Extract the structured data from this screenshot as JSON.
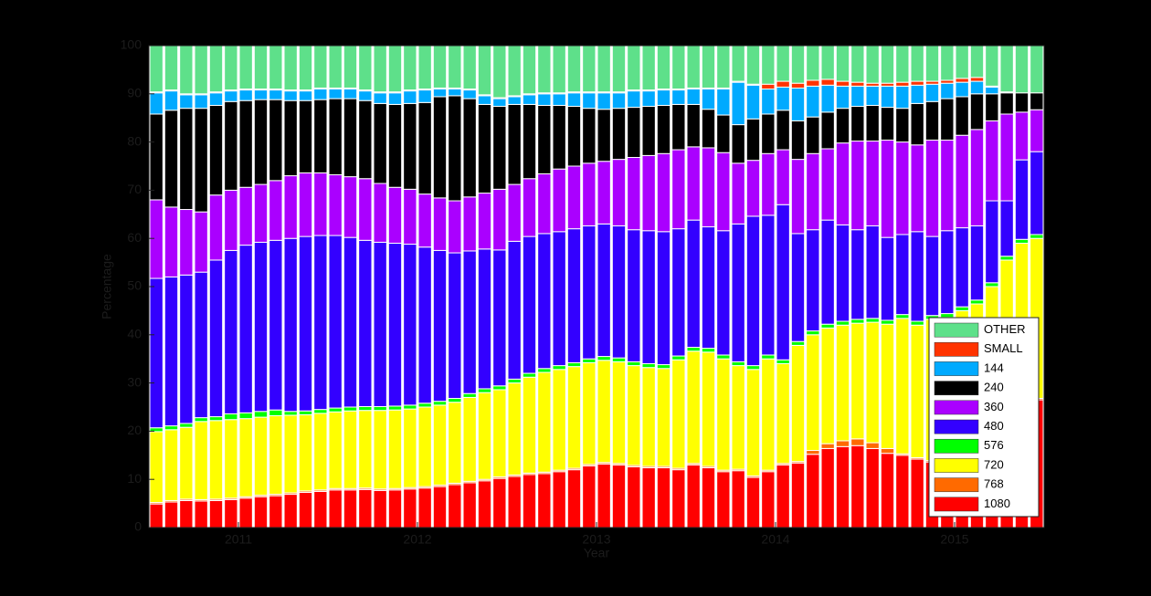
{
  "chart_data": {
    "type": "stacked-bar",
    "x_label": "Year",
    "y_label": "Percentage",
    "categories": [
      null,
      null,
      null,
      null,
      null,
      null,
      "2011",
      null,
      null,
      null,
      null,
      null,
      null,
      null,
      null,
      null,
      null,
      null,
      "2012",
      null,
      null,
      null,
      null,
      null,
      null,
      null,
      null,
      null,
      null,
      null,
      "2013",
      null,
      null,
      null,
      null,
      null,
      null,
      null,
      null,
      null,
      null,
      null,
      "2014",
      null,
      null,
      null,
      null,
      null,
      null,
      null,
      null,
      null,
      null,
      null,
      "2015",
      null,
      null,
      null,
      null,
      null
    ],
    "ylim": [
      0,
      100
    ],
    "yticks": [
      0,
      10,
      20,
      30,
      40,
      50,
      60,
      70,
      80,
      90,
      100
    ],
    "legend": "lower right",
    "series": [
      {
        "name": "1080",
        "color": "#ff0000",
        "values": [
          4.9,
          5.3,
          5.6,
          5.5,
          5.6,
          5.8,
          6.1,
          6.4,
          6.6,
          6.9,
          7.3,
          7.5,
          7.8,
          7.8,
          7.9,
          7.7,
          7.8,
          8.0,
          8.2,
          8.5,
          8.9,
          9.3,
          9.7,
          10.2,
          10.6,
          11.0,
          11.2,
          11.6,
          12.0,
          12.8,
          13.2,
          13.0,
          12.6,
          12.4,
          12.4,
          12.0,
          13.0,
          12.4,
          11.6,
          11.8,
          10.4,
          11.6,
          13.0,
          13.4,
          15.2,
          16.4,
          16.8,
          17.0,
          16.4,
          15.4,
          15.0,
          14.2,
          13.6,
          15.0,
          17.0,
          19.0,
          21.0,
          23.0,
          25.0,
          26.5
        ]
      },
      {
        "name": "768",
        "color": "#ff6a00",
        "values": [
          0.3,
          0.3,
          0.3,
          0.3,
          0.3,
          0.3,
          0.3,
          0.3,
          0.3,
          0.3,
          0.3,
          0.3,
          0.3,
          0.3,
          0.3,
          0.3,
          0.3,
          0.3,
          0.3,
          0.3,
          0.3,
          0.3,
          0.3,
          0.3,
          0.3,
          0.3,
          0.3,
          0.3,
          0.3,
          0.3,
          0.3,
          0.3,
          0.3,
          0.3,
          0.3,
          0.3,
          0.3,
          0.3,
          0.3,
          0.3,
          0.3,
          0.3,
          0.3,
          0.3,
          0.8,
          1.0,
          1.2,
          1.4,
          1.2,
          1.0,
          0.3,
          0.3,
          0.3,
          0.3,
          0.3,
          0.3,
          0.3,
          0.3,
          0.3,
          0.3
        ]
      },
      {
        "name": "720",
        "color": "#ffff00",
        "values": [
          14.7,
          14.7,
          14.9,
          16.2,
          16.3,
          16.3,
          16.2,
          16.2,
          16.3,
          16.1,
          15.8,
          15.9,
          15.9,
          16.1,
          16.1,
          16.3,
          16.3,
          16.3,
          16.5,
          16.6,
          16.8,
          17.4,
          18.0,
          18.1,
          19.1,
          19.9,
          20.7,
          20.9,
          21.1,
          21.1,
          21.2,
          21.1,
          20.7,
          20.5,
          20.3,
          22.5,
          23.3,
          23.7,
          23.1,
          21.5,
          22.1,
          23.1,
          20.7,
          24.1,
          24.0,
          24.0,
          24.0,
          24.0,
          25.0,
          25.8,
          28.1,
          27.5,
          29.3,
          28.3,
          27.7,
          27.1,
          28.7,
          32.2,
          33.7,
          33.2
        ]
      },
      {
        "name": "576",
        "color": "#00ff00",
        "values": [
          0.8,
          0.8,
          0.8,
          0.8,
          0.8,
          1.2,
          1.2,
          1.2,
          1.2,
          0.8,
          0.8,
          0.8,
          0.8,
          0.8,
          0.8,
          0.8,
          0.8,
          0.8,
          0.8,
          0.8,
          0.8,
          0.8,
          0.8,
          0.8,
          0.8,
          0.8,
          0.8,
          0.8,
          0.8,
          0.8,
          0.8,
          0.8,
          0.8,
          0.8,
          0.8,
          0.8,
          0.8,
          0.8,
          0.8,
          0.8,
          0.8,
          0.8,
          0.8,
          0.8,
          0.8,
          0.8,
          0.8,
          0.8,
          0.8,
          0.8,
          0.8,
          0.8,
          0.8,
          0.8,
          0.8,
          0.8,
          0.8,
          0.8,
          0.8,
          0.8
        ]
      },
      {
        "name": "480",
        "color": "#3300ff",
        "values": [
          31.0,
          30.9,
          30.8,
          30.2,
          32.5,
          33.9,
          34.8,
          35.1,
          35.2,
          35.9,
          36.2,
          36.1,
          35.8,
          35.2,
          34.5,
          34.1,
          33.8,
          33.4,
          32.4,
          31.3,
          30.2,
          29.6,
          29.0,
          28.2,
          28.6,
          28.4,
          28.0,
          27.8,
          27.8,
          27.6,
          27.5,
          27.4,
          27.4,
          27.6,
          27.6,
          26.4,
          26.4,
          25.2,
          25.8,
          28.6,
          31.0,
          29.0,
          32.2,
          22.4,
          21.0,
          21.6,
          20.0,
          18.6,
          19.2,
          17.2,
          16.6,
          18.6,
          16.4,
          17.2,
          16.4,
          15.4,
          17.0,
          11.5,
          16.5,
          17.2
        ]
      },
      {
        "name": "360",
        "color": "#aa00ff",
        "values": [
          16.3,
          14.5,
          13.6,
          12.5,
          13.5,
          12.5,
          12.0,
          12.0,
          12.4,
          13.0,
          13.2,
          13.0,
          12.6,
          12.6,
          12.8,
          12.2,
          11.6,
          11.4,
          11.0,
          10.9,
          10.8,
          11.2,
          11.6,
          12.6,
          11.8,
          12.0,
          12.4,
          13.0,
          13.0,
          13.0,
          13.0,
          13.8,
          15.0,
          15.6,
          16.2,
          16.4,
          15.2,
          16.4,
          16.2,
          12.6,
          11.6,
          12.8,
          11.4,
          15.4,
          15.8,
          14.8,
          17.0,
          18.4,
          17.6,
          20.2,
          19.2,
          18.0,
          20.0,
          18.8,
          19.2,
          20.0,
          16.6,
          18.0,
          9.9,
          8.7
        ]
      },
      {
        "name": "240",
        "color": "#000000",
        "values": [
          17.8,
          20.1,
          21.0,
          21.5,
          18.6,
          18.4,
          18.0,
          17.6,
          16.8,
          15.6,
          15.0,
          15.2,
          15.8,
          16.2,
          16.2,
          16.6,
          17.2,
          17.8,
          19.0,
          21.0,
          21.8,
          20.4,
          18.4,
          17.2,
          16.6,
          15.4,
          14.2,
          13.2,
          12.4,
          11.4,
          10.8,
          10.6,
          10.4,
          10.2,
          10.0,
          9.4,
          8.8,
          8.0,
          7.8,
          8.0,
          8.6,
          8.2,
          8.2,
          8.0,
          7.6,
          7.6,
          7.2,
          7.2,
          7.4,
          6.8,
          7.0,
          8.6,
          8.0,
          8.6,
          8.0,
          7.4,
          5.6,
          4.4,
          4.0,
          3.5
        ]
      },
      {
        "name": "144",
        "color": "#00aaff",
        "values": [
          4.4,
          4.0,
          2.8,
          2.8,
          2.6,
          2.2,
          2.2,
          2.0,
          2.0,
          2.0,
          2.0,
          2.2,
          2.0,
          2.0,
          2.0,
          2.2,
          2.4,
          2.6,
          2.6,
          1.6,
          1.4,
          1.8,
          1.8,
          1.6,
          1.6,
          2.0,
          2.4,
          2.4,
          2.8,
          3.2,
          3.4,
          3.2,
          3.4,
          3.2,
          3.2,
          3.0,
          3.2,
          4.2,
          5.4,
          8.8,
          7.0,
          5.2,
          4.8,
          6.8,
          6.4,
          5.6,
          4.6,
          4.2,
          4.0,
          4.4,
          4.6,
          3.8,
          3.6,
          3.2,
          3.0,
          2.6,
          1.4,
          0.2,
          0,
          0
        ]
      },
      {
        "name": "SMALL",
        "color": "#ff3300",
        "values": [
          0.2,
          0.2,
          0.2,
          0.2,
          0.2,
          0.2,
          0.2,
          0.2,
          0.2,
          0.2,
          0.2,
          0.2,
          0.2,
          0.2,
          0.2,
          0.2,
          0.2,
          0.2,
          0.2,
          0.2,
          0.2,
          0.2,
          0.2,
          0.2,
          0.2,
          0.2,
          0.2,
          0.2,
          0.2,
          0.2,
          0.2,
          0.2,
          0.2,
          0.2,
          0.2,
          0.2,
          0.2,
          0.2,
          0.2,
          0.2,
          0.2,
          1.0,
          1.2,
          1.0,
          1.2,
          1.2,
          1.0,
          0.8,
          0.6,
          0.6,
          0.8,
          0.8,
          0.6,
          0.6,
          0.8,
          0.8,
          0.2,
          0,
          0,
          0
        ]
      },
      {
        "name": "OTHER",
        "color": "#5ee08a",
        "values": [
          9.6,
          9.2,
          10.0,
          10.0,
          9.6,
          9.2,
          9.0,
          9.0,
          9.0,
          9.2,
          9.2,
          8.8,
          8.8,
          8.8,
          9.2,
          9.6,
          9.6,
          9.2,
          9.0,
          8.8,
          8.8,
          9.0,
          10.2,
          10.8,
          10.4,
          10.0,
          9.8,
          9.8,
          9.6,
          9.6,
          9.6,
          9.6,
          9.2,
          9.2,
          9.0,
          9.0,
          8.8,
          8.8,
          8.8,
          7.4,
          8.0,
          8.0,
          7.4,
          7.8,
          7.2,
          7.0,
          7.4,
          7.6,
          7.8,
          7.8,
          7.6,
          7.4,
          7.4,
          7.2,
          6.8,
          6.6,
          8.4,
          9.6,
          9.8,
          9.8
        ]
      }
    ]
  }
}
